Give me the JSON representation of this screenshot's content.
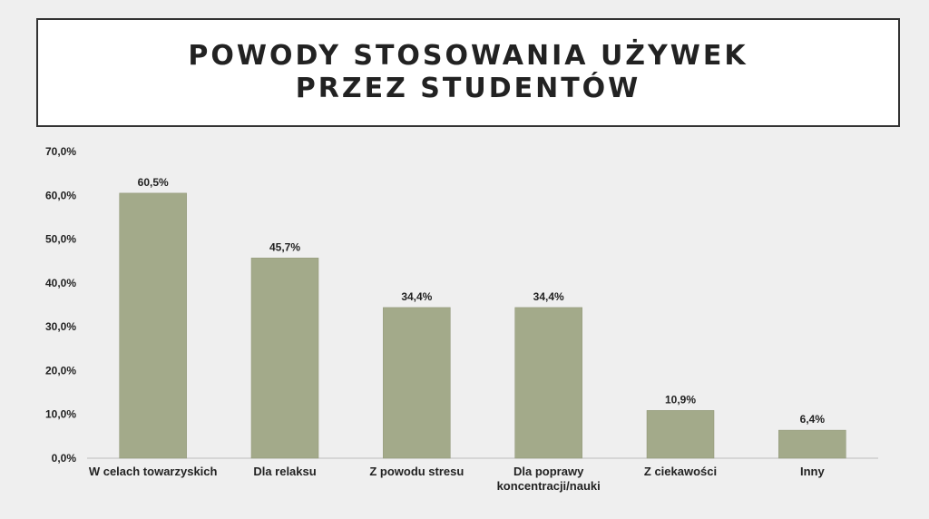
{
  "title": {
    "line1": "POWODY STOSOWANIA UŻYWEK",
    "line2": "PRZEZ STUDENTÓW"
  },
  "chart_data": {
    "type": "bar",
    "categories": [
      "W celach towarzyskich",
      "Dla relaksu",
      "Z powodu stresu",
      "Dla poprawy koncentracji/nauki",
      "Z ciekawości",
      "Inny"
    ],
    "values": [
      60.5,
      45.7,
      34.4,
      34.4,
      10.9,
      6.4
    ],
    "data_labels": [
      "60,5%",
      "45,7%",
      "34,4%",
      "34,4%",
      "10,9%",
      "6,4%"
    ],
    "yticks": [
      0,
      10,
      20,
      30,
      40,
      50,
      60,
      70
    ],
    "ytick_labels": [
      "0,0%",
      "10,0%",
      "20,0%",
      "30,0%",
      "40,0%",
      "50,0%",
      "60,0%",
      "70,0%"
    ],
    "ylim": [
      0,
      70
    ],
    "grid": false,
    "bar_color": "#a3aa8a",
    "bar_edge_color": "#8d9474"
  }
}
